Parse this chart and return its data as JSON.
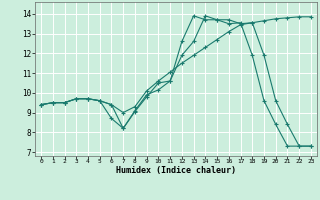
{
  "xlabel": "Humidex (Indice chaleur)",
  "bg_color": "#cceedd",
  "grid_color": "#ffffff",
  "line_color": "#1a7a6e",
  "xlim": [
    -0.5,
    23.5
  ],
  "ylim": [
    6.8,
    14.6
  ],
  "xticks": [
    0,
    1,
    2,
    3,
    4,
    5,
    6,
    7,
    8,
    9,
    10,
    11,
    12,
    13,
    14,
    15,
    16,
    17,
    18,
    19,
    20,
    21,
    22,
    23
  ],
  "yticks": [
    7,
    8,
    9,
    10,
    11,
    12,
    13,
    14
  ],
  "line1_x": [
    0,
    1,
    2,
    3,
    4,
    5,
    6,
    7,
    8,
    9,
    10,
    11,
    12,
    13,
    14,
    15,
    16,
    17,
    18,
    19,
    20,
    21,
    22,
    23
  ],
  "line1_y": [
    9.4,
    9.5,
    9.5,
    9.7,
    9.7,
    9.6,
    9.4,
    8.2,
    9.1,
    9.9,
    10.15,
    10.6,
    12.6,
    13.9,
    13.7,
    13.7,
    13.5,
    13.55,
    11.9,
    9.6,
    8.4,
    7.3,
    7.3,
    7.3
  ],
  "line2_x": [
    0,
    1,
    2,
    3,
    4,
    5,
    6,
    7,
    8,
    9,
    10,
    11,
    12,
    13,
    14,
    15,
    16,
    17,
    18,
    19,
    20,
    21,
    22,
    23
  ],
  "line2_y": [
    9.4,
    9.5,
    9.5,
    9.7,
    9.7,
    9.6,
    9.4,
    9.0,
    9.3,
    10.1,
    10.6,
    11.05,
    11.5,
    11.9,
    12.3,
    12.7,
    13.1,
    13.45,
    13.55,
    13.65,
    13.75,
    13.8,
    13.85,
    13.85
  ],
  "line3_x": [
    0,
    1,
    2,
    3,
    4,
    5,
    6,
    7,
    8,
    9,
    10,
    11,
    12,
    13,
    14,
    15,
    16,
    17,
    18,
    19,
    20,
    21,
    22,
    23
  ],
  "line3_y": [
    9.4,
    9.5,
    9.5,
    9.7,
    9.7,
    9.6,
    8.7,
    8.2,
    9.05,
    9.8,
    10.5,
    10.6,
    11.9,
    12.6,
    13.9,
    13.7,
    13.7,
    13.5,
    13.55,
    11.9,
    9.6,
    8.4,
    7.3,
    7.3
  ]
}
